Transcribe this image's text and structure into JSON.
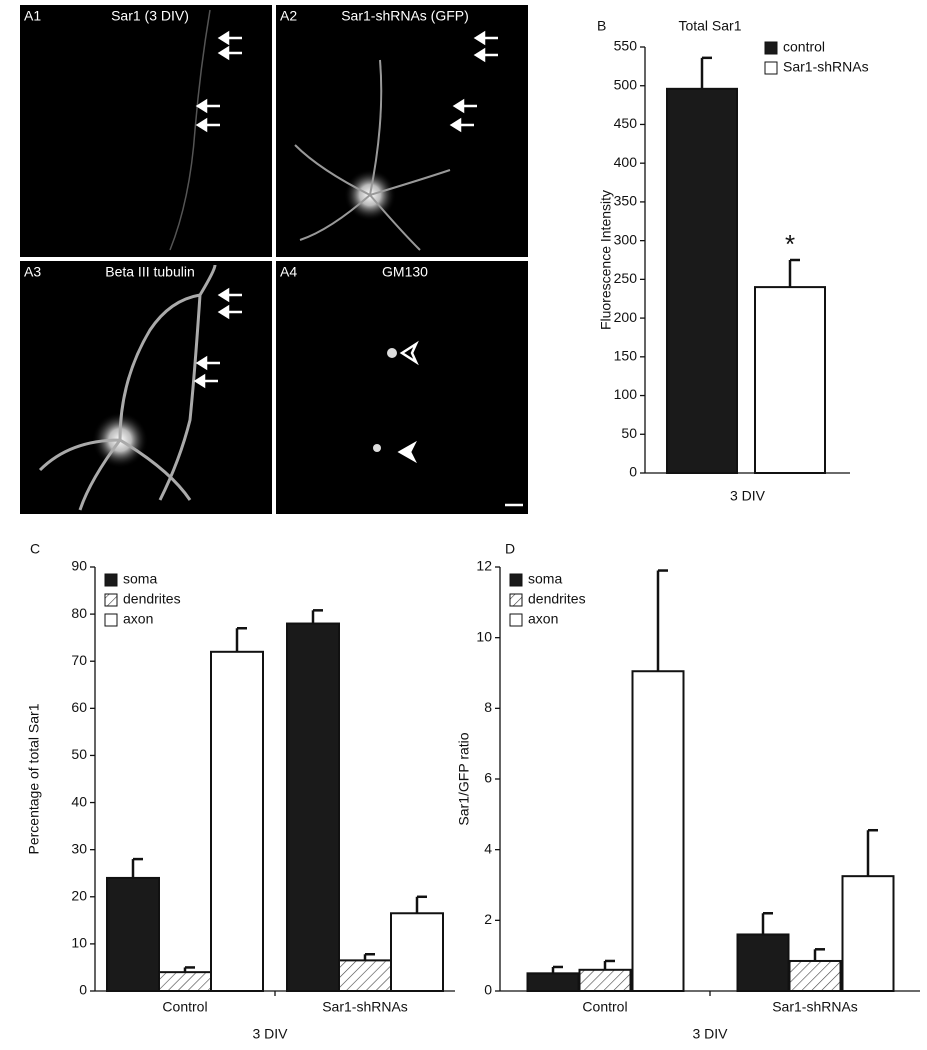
{
  "images": [
    {
      "id": "A1",
      "label": "Sar1 (3 DIV)"
    },
    {
      "id": "A2",
      "label": "Sar1-shRNAs (GFP)"
    },
    {
      "id": "A3",
      "label": "Beta III tubulin"
    },
    {
      "id": "A4",
      "label": "GM130"
    }
  ],
  "chart_data": [
    {
      "type": "bar",
      "panel": "B",
      "title": "Total Sar1",
      "ylabel": "Fluorescence Intensity",
      "categories": [
        "3 DIV"
      ],
      "series": [
        {
          "name": "control",
          "color": "#1a1a1a",
          "values": [
            496
          ],
          "errors": [
            40
          ]
        },
        {
          "name": "Sar1-shRNAs",
          "color": "#ffffff",
          "values": [
            240
          ],
          "errors": [
            35
          ]
        }
      ],
      "annotation": "*",
      "ylim": [
        0,
        550
      ],
      "yticks": [
        0,
        50,
        100,
        150,
        200,
        250,
        300,
        350,
        400,
        450,
        500,
        550
      ],
      "legend": "top-right",
      "grid": false
    },
    {
      "type": "bar",
      "panel": "C",
      "ylabel": "Percentage of total Sar1",
      "xlabel": "3 DIV",
      "categories": [
        "Control",
        "Sar1-shRNAs"
      ],
      "series": [
        {
          "name": "soma",
          "color": "#1a1a1a",
          "values": [
            24,
            78
          ],
          "errors": [
            4,
            2.8
          ]
        },
        {
          "name": "dendrites",
          "color": "#ffffff",
          "hatch": true,
          "values": [
            4,
            6.5
          ],
          "errors": [
            1,
            1.3
          ]
        },
        {
          "name": "axon",
          "color": "#ffffff",
          "values": [
            72,
            16.5
          ],
          "errors": [
            5,
            3.5
          ]
        }
      ],
      "ylim": [
        0,
        90
      ],
      "yticks": [
        0,
        10,
        20,
        30,
        40,
        50,
        60,
        70,
        80,
        90
      ],
      "legend": "top-left",
      "grid": false
    },
    {
      "type": "bar",
      "panel": "D",
      "ylabel": "Sar1/GFP ratio",
      "xlabel": "3 DIV",
      "categories": [
        "Control",
        "Sar1-shRNAs"
      ],
      "series": [
        {
          "name": "soma",
          "color": "#1a1a1a",
          "values": [
            0.5,
            1.6
          ],
          "errors": [
            0.18,
            0.6
          ]
        },
        {
          "name": "dendrites",
          "color": "#ffffff",
          "hatch": true,
          "values": [
            0.6,
            0.85
          ],
          "errors": [
            0.25,
            0.33
          ]
        },
        {
          "name": "axon",
          "color": "#ffffff",
          "values": [
            9.05,
            3.25
          ],
          "errors": [
            2.85,
            1.3
          ]
        }
      ],
      "ylim": [
        0,
        12
      ],
      "yticks": [
        0,
        2,
        4,
        6,
        8,
        10,
        12
      ],
      "legend": "top-left",
      "grid": false
    }
  ]
}
